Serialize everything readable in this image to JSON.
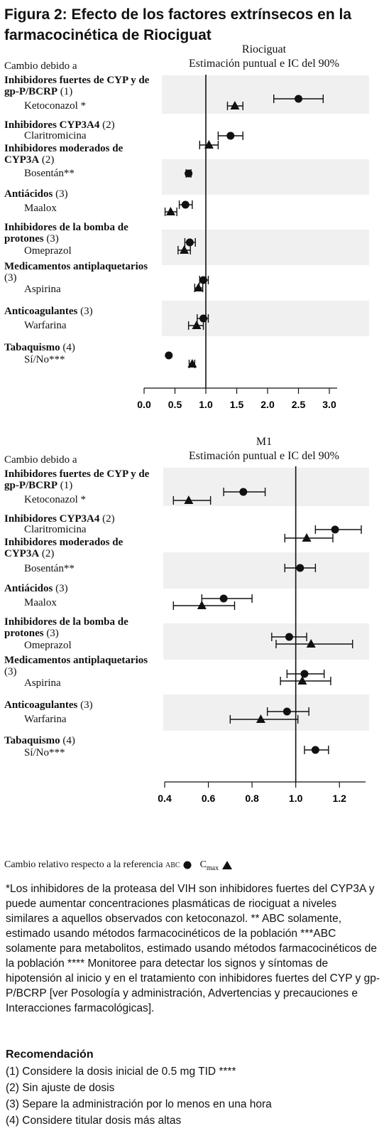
{
  "title": "Figura 2: Efecto de los factores extrínsecos en la farmacocinética de Riociguat",
  "chart_data": [
    {
      "type": "forest",
      "title": "Riociguat",
      "subtitle": "Estimación puntual e IC del 90%",
      "header": "Cambio debido a",
      "xlim": [
        0.0,
        3.0
      ],
      "xticks": [
        "0.0",
        "0.5",
        "1.0",
        "1.5",
        "2.0",
        "2.5",
        "3.0"
      ],
      "reference": 1.0,
      "groups": [
        {
          "name": "Inhibidores fuertes de CYP y de gp-P/BCRP",
          "rec": "(1)",
          "drugs": [
            {
              "name": "Ketoconazol *",
              "auc": [
                2.5,
                2.1,
                2.9
              ],
              "cmax": [
                1.47,
                1.35,
                1.6
              ]
            }
          ]
        },
        {
          "name": "Inhibidores CYP3A4",
          "rec": "(2)",
          "drugs": [
            {
              "name": "Claritromicina",
              "auc": [
                1.4,
                1.2,
                1.6
              ],
              "cmax": null
            }
          ]
        },
        {
          "name": "Inhibidores moderados de CYP3A",
          "rec": "(2)",
          "drugs": [
            {
              "name": "",
              "auc": null,
              "cmax": [
                1.05,
                0.9,
                1.2
              ]
            },
            {
              "name": "Bosentán**",
              "auc": [
                0.72,
                0.68,
                0.76
              ],
              "cmax": null
            }
          ]
        },
        {
          "name": "Antiácidos",
          "rec": "(3)",
          "drugs": [
            {
              "name": "Maalox",
              "auc": [
                0.67,
                0.57,
                0.78
              ],
              "cmax": [
                0.43,
                0.34,
                0.53
              ]
            }
          ]
        },
        {
          "name": "Inhibidores de la bomba de protones",
          "rec": "(3)",
          "drugs": [
            {
              "name": "Omeprazol",
              "auc": [
                0.74,
                0.66,
                0.83
              ],
              "cmax": [
                0.65,
                0.55,
                0.75
              ]
            }
          ]
        },
        {
          "name": "Medicamentos antiplaquetarios",
          "rec": "(3)",
          "drugs": [
            {
              "name": "Aspirina",
              "auc": [
                0.96,
                0.9,
                1.04
              ],
              "cmax": [
                0.88,
                0.82,
                0.95
              ]
            }
          ]
        },
        {
          "name": "Anticoagulantes",
          "rec": "(3)",
          "drugs": [
            {
              "name": "Warfarina",
              "auc": [
                0.96,
                0.86,
                1.04
              ],
              "cmax": [
                0.85,
                0.72,
                0.96
              ]
            }
          ]
        },
        {
          "name": "Tabaquismo",
          "rec": "(4)",
          "drugs": [
            {
              "name": "Sí/No***",
              "auc": [
                0.4,
                0.4,
                0.4
              ],
              "cmax": [
                0.78,
                0.73,
                0.82
              ]
            }
          ]
        }
      ]
    },
    {
      "type": "forest",
      "title": "M1",
      "subtitle": "Estimación puntual e IC del 90%",
      "header": "Cambio debido a",
      "xlim": [
        0.4,
        1.3
      ],
      "xticks": [
        "0.4",
        "0.6",
        "0.8",
        "1.0",
        "1.2"
      ],
      "reference": 1.0,
      "groups": [
        {
          "name": "Inhibidores fuertes de CYP y de gp-P/BCRP",
          "rec": "(1)",
          "drugs": [
            {
              "name": "Ketoconazol *",
              "auc": [
                0.76,
                0.67,
                0.86
              ],
              "cmax": [
                0.51,
                0.44,
                0.61
              ]
            }
          ]
        },
        {
          "name": "Inhibidores CYP3A4",
          "rec": "(2)",
          "drugs": [
            {
              "name": "Claritromicina",
              "auc": [
                1.18,
                1.09,
                1.3
              ],
              "cmax": [
                1.05,
                0.95,
                1.17
              ]
            }
          ]
        },
        {
          "name": "Inhibidores moderados de CYP3A",
          "rec": "(2)",
          "drugs": [
            {
              "name": "Bosentán**",
              "auc": [
                1.02,
                0.95,
                1.09
              ],
              "cmax": null
            }
          ]
        },
        {
          "name": "Antiácidos",
          "rec": "(3)",
          "drugs": [
            {
              "name": "Maalox",
              "auc": [
                0.67,
                0.57,
                0.8
              ],
              "cmax": [
                0.57,
                0.44,
                0.72
              ]
            }
          ]
        },
        {
          "name": "Inhibidores de la bomba de protones",
          "rec": "(3)",
          "drugs": [
            {
              "name": "Omeprazol",
              "auc": [
                0.97,
                0.89,
                1.05
              ],
              "cmax": [
                1.07,
                0.91,
                1.26
              ]
            }
          ]
        },
        {
          "name": "Medicamentos antiplaquetarios",
          "rec": "(3)",
          "drugs": [
            {
              "name": "Aspirina",
              "auc": [
                1.04,
                0.96,
                1.13
              ],
              "cmax": [
                1.03,
                0.93,
                1.16
              ]
            }
          ]
        },
        {
          "name": "Anticoagulantes",
          "rec": "(3)",
          "drugs": [
            {
              "name": "Warfarina",
              "auc": [
                0.96,
                0.87,
                1.06
              ],
              "cmax": [
                0.84,
                0.7,
                1.01
              ]
            }
          ]
        },
        {
          "name": "Tabaquismo",
          "rec": "(4)",
          "drugs": [
            {
              "name": "Sí/No***",
              "auc": [
                1.09,
                1.04,
                1.15
              ],
              "cmax": null
            }
          ]
        }
      ]
    }
  ],
  "legend": {
    "text": "Cambio relativo respecto a la referencia",
    "auc": "ABC",
    "cmax": "C",
    "cmax_sub": "max"
  },
  "notes": "*Los inhibidores de la proteasa del VIH son inhibidores fuertes del CYP3A y puede aumentar concentraciones plasmáticas de riociguat a niveles similares a aquellos observados con ketoconazol. ** ABC solamente, estimado usando métodos farmacocinéticos de la población ***ABC solamente para metabolitos, estimado usando métodos farmacocinéticos de la población **** Monitoree para detectar los signos y síntomas de hipotensión al inicio y en el tratamiento con inhibidores fuertes del CYP y gp-P/BCRP [ver Posología y administración, Advertencias y precauciones e Interacciones farmacológicas].",
  "recommendation": {
    "title": "Recomendación",
    "items": [
      "(1) Considere la dosis inicial de 0.5 mg TID ****",
      "(2) Sin ajuste de dosis",
      "(3) Separe la administración por lo menos en una hora",
      "(4) Considere titular dosis más altas"
    ]
  }
}
